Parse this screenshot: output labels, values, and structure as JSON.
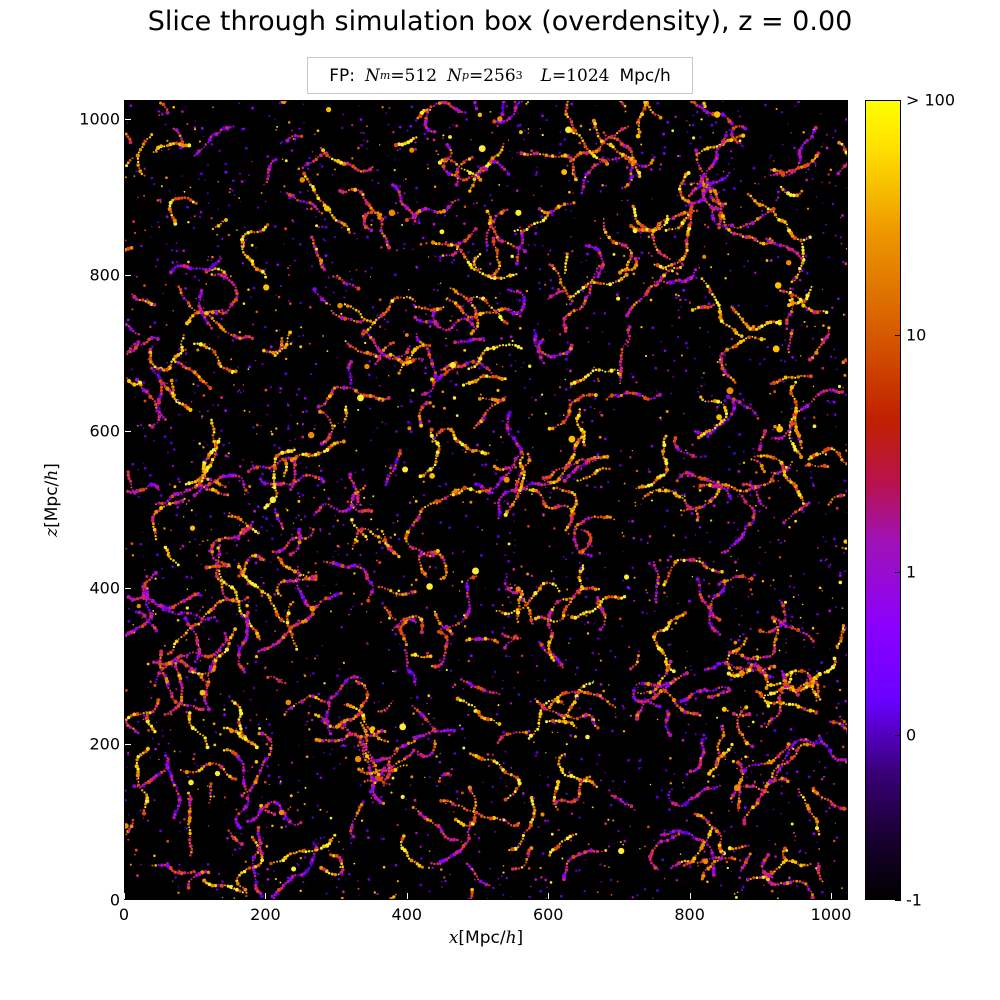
{
  "chart_data": {
    "type": "heatmap",
    "title": "Slice through simulation box (overdensity), z = 0.00",
    "legend": {
      "prefix": "FP:",
      "nm_symbol": "N",
      "nm_sub": "m",
      "nm_value": "=512",
      "np_symbol": "N",
      "np_sub": "p",
      "np_value": "=256",
      "np_exp": "3",
      "l_symbol": "L",
      "l_value": "=1024",
      "l_unit": "Mpc/h",
      "placement": "top-center"
    },
    "xlabel": {
      "var": "x",
      "open": "[",
      "unit": "Mpc/",
      "h": "h",
      "close": "]"
    },
    "ylabel": {
      "var": "z",
      "open": "[",
      "unit": "Mpc/",
      "h": "h",
      "close": "]"
    },
    "xlim": [
      0,
      1024
    ],
    "ylim": [
      0,
      1024
    ],
    "xticks": [
      "0",
      "200",
      "400",
      "600",
      "800",
      "1000"
    ],
    "yticks": [
      "0",
      "200",
      "400",
      "600",
      "800",
      "1000"
    ],
    "xtick_values": [
      0,
      200,
      400,
      600,
      800,
      1000
    ],
    "ytick_values": [
      0,
      200,
      400,
      600,
      800,
      1000
    ],
    "colorbar": {
      "labels": [
        "-1",
        "0",
        "1",
        "10",
        "> 100"
      ],
      "fractions": [
        0.0,
        0.206,
        0.41,
        0.706,
        1.0
      ]
    },
    "grid": false,
    "colors": {
      "background": "#000000",
      "low": "#6a00ff",
      "mid": "#c02000",
      "high": "#ffff00"
    }
  }
}
